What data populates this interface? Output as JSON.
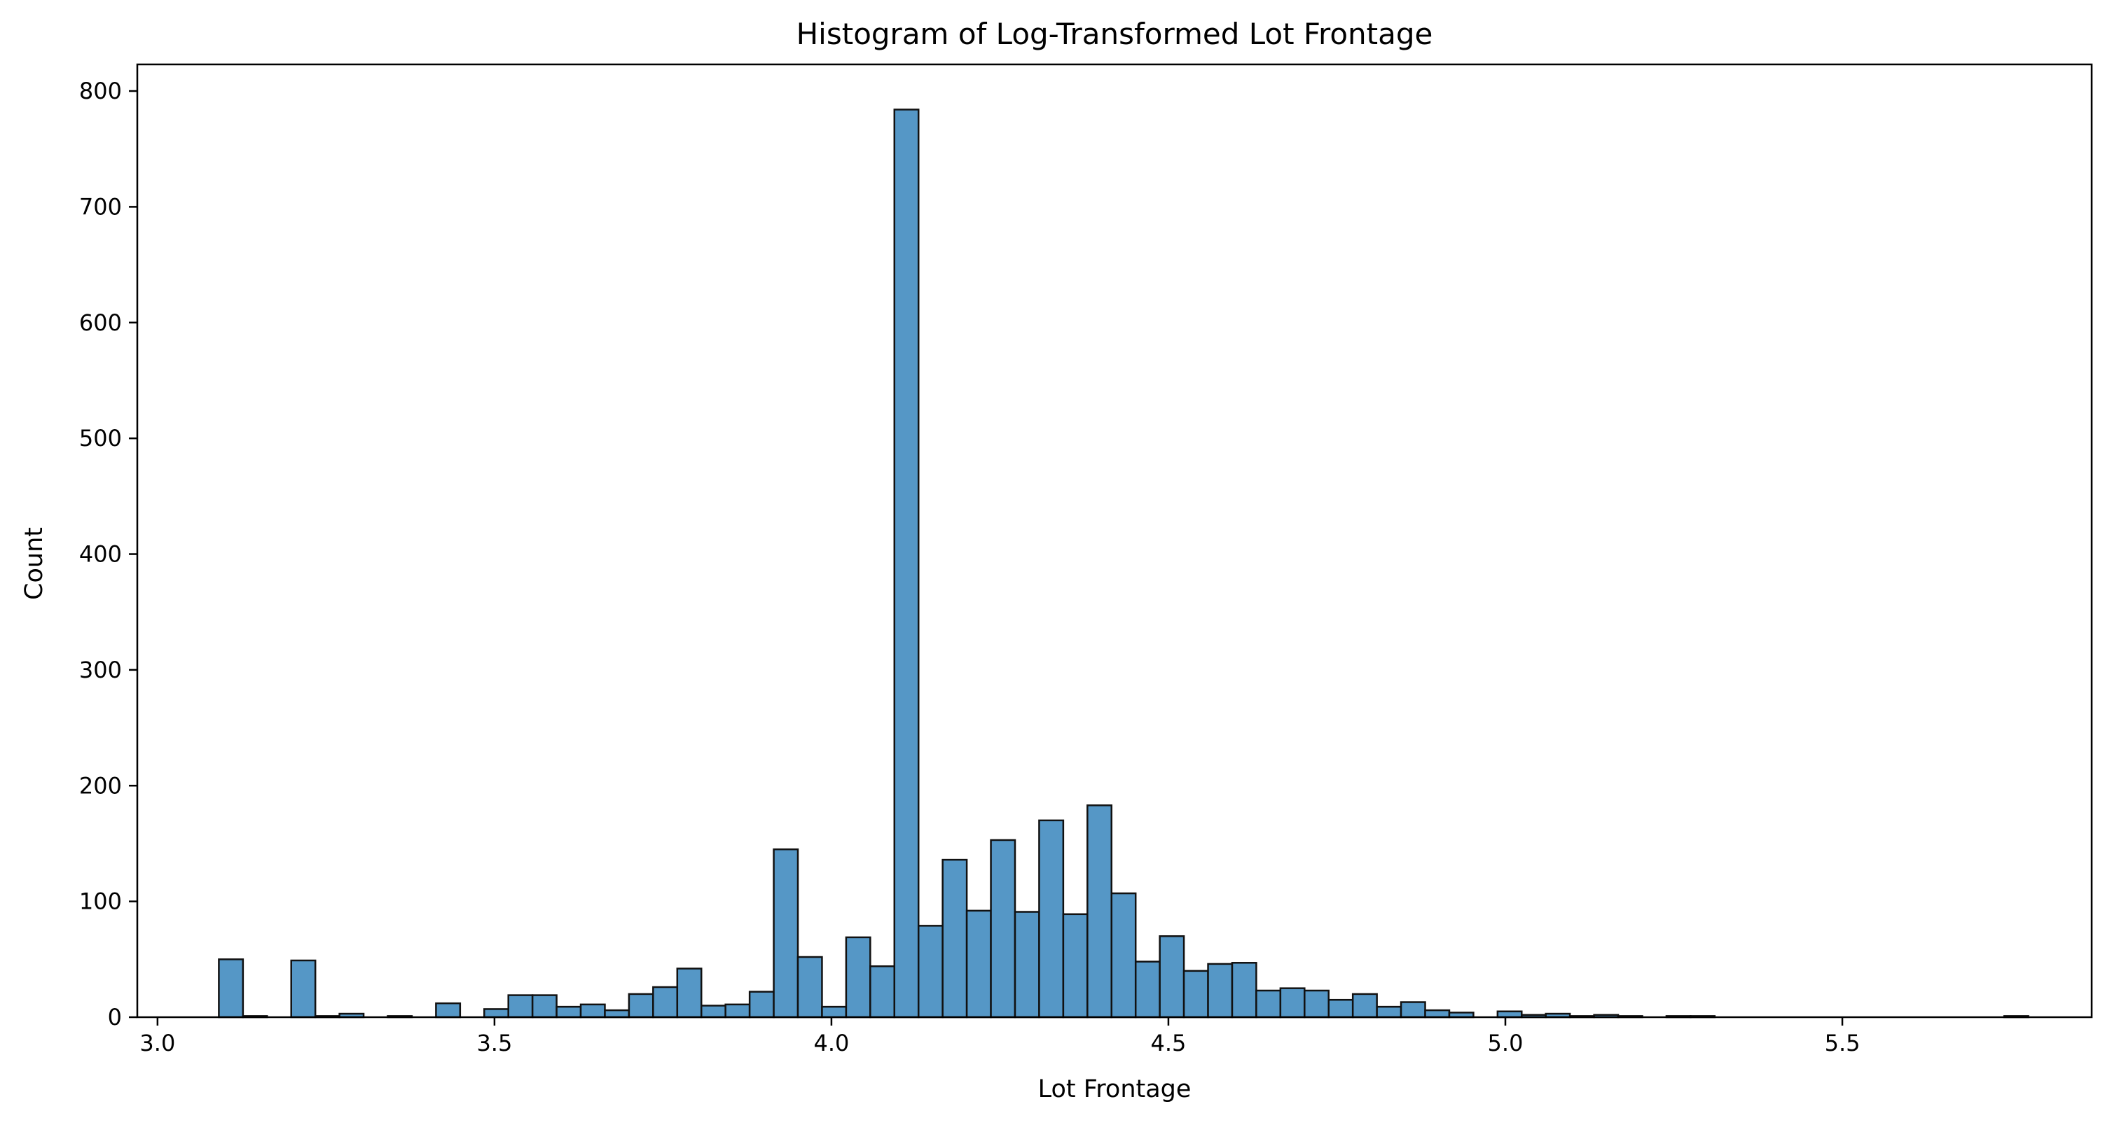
{
  "chart_data": {
    "type": "bar",
    "title": "Histogram of Log-Transformed Lot Frontage",
    "xlabel": "Lot Frontage",
    "ylabel": "Count",
    "xlim": [
      2.97,
      5.87
    ],
    "ylim": [
      0,
      823
    ],
    "grid": false,
    "bar_color": "#5597c6",
    "edge_color": "#111111",
    "x_ticks": [
      {
        "value": 3.0,
        "label": "3.0"
      },
      {
        "value": 3.5,
        "label": "3.5"
      },
      {
        "value": 4.0,
        "label": "4.0"
      },
      {
        "value": 4.5,
        "label": "4.5"
      },
      {
        "value": 5.0,
        "label": "5.0"
      },
      {
        "value": 5.5,
        "label": "5.5"
      }
    ],
    "y_ticks": [
      {
        "value": 0,
        "label": "0"
      },
      {
        "value": 100,
        "label": "100"
      },
      {
        "value": 200,
        "label": "200"
      },
      {
        "value": 300,
        "label": "300"
      },
      {
        "value": 400,
        "label": "400"
      },
      {
        "value": 500,
        "label": "500"
      },
      {
        "value": 600,
        "label": "600"
      },
      {
        "value": 700,
        "label": "700"
      },
      {
        "value": 800,
        "label": "800"
      }
    ],
    "bin_start": 3.091,
    "bin_width": 0.0358,
    "counts": [
      50,
      1,
      0,
      49,
      1,
      3,
      0,
      1,
      0,
      12,
      0,
      7,
      19,
      19,
      9,
      11,
      6,
      20,
      26,
      42,
      10,
      11,
      22,
      145,
      52,
      9,
      69,
      44,
      784,
      79,
      136,
      92,
      153,
      91,
      170,
      89,
      183,
      107,
      48,
      70,
      40,
      46,
      47,
      23,
      25,
      23,
      15,
      20,
      9,
      13,
      6,
      4,
      0,
      5,
      2,
      3,
      1,
      2,
      1,
      0,
      1,
      1,
      0,
      0,
      0,
      0,
      0,
      0,
      0,
      0,
      0,
      0,
      0,
      0,
      1
    ]
  }
}
